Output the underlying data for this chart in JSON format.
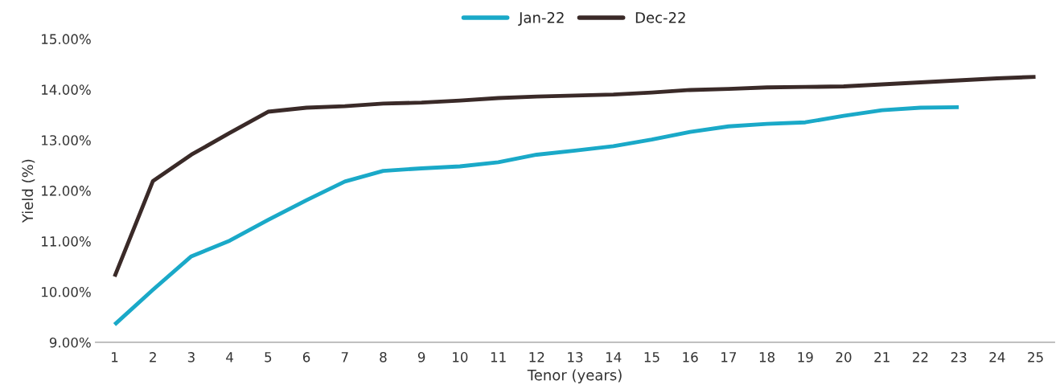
{
  "chart_data": {
    "type": "line",
    "xlabel": "Tenor (years)",
    "ylabel": "Yield (%)",
    "categories": [
      "1",
      "2",
      "3",
      "4",
      "5",
      "6",
      "7",
      "8",
      "9",
      "10",
      "11",
      "12",
      "13",
      "14",
      "15",
      "16",
      "17",
      "18",
      "19",
      "20",
      "21",
      "22",
      "23",
      "24",
      "25"
    ],
    "series": [
      {
        "name": "Jan-22",
        "color": "#1aa9c8",
        "values": [
          9.35,
          10.04,
          10.7,
          11.01,
          11.42,
          11.81,
          12.18,
          12.39,
          12.44,
          12.48,
          12.56,
          12.71,
          12.79,
          12.88,
          13.01,
          13.16,
          13.27,
          13.32,
          13.35,
          13.48,
          13.59,
          13.64,
          13.65,
          null,
          null
        ]
      },
      {
        "name": "Dec-22",
        "color": "#3a2a28",
        "values": [
          10.3,
          12.19,
          12.71,
          13.14,
          13.56,
          13.64,
          13.67,
          13.72,
          13.74,
          13.78,
          13.83,
          13.86,
          13.88,
          13.9,
          13.94,
          13.99,
          14.01,
          14.04,
          14.05,
          14.06,
          14.1,
          14.14,
          14.18,
          14.22,
          14.25
        ]
      }
    ],
    "ylim": [
      9,
      15
    ],
    "yticks": [
      {
        "value": 9,
        "label": "9.00%"
      },
      {
        "value": 10,
        "label": "10.00%"
      },
      {
        "value": 11,
        "label": "11.00%"
      },
      {
        "value": 12,
        "label": "12.00%"
      },
      {
        "value": 13,
        "label": "13.00%"
      },
      {
        "value": 14,
        "label": "14.00%"
      },
      {
        "value": 15,
        "label": "15.00%"
      }
    ],
    "grid": false,
    "legend": "top",
    "marker": "none",
    "line_style": "solid"
  }
}
